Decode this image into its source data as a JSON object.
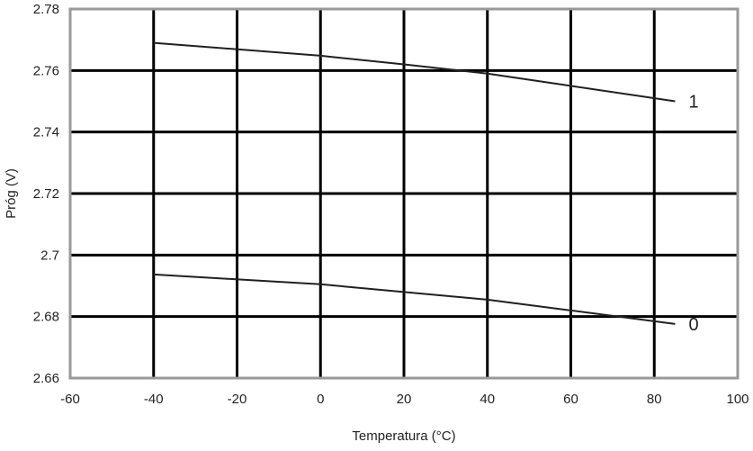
{
  "chart_data": {
    "type": "line",
    "title": "",
    "xlabel": "Temperatura (°C)",
    "ylabel": "Próg (V)",
    "xlim": [
      -60,
      100
    ],
    "ylim": [
      2.66,
      2.78
    ],
    "x_ticks": [
      -60,
      -40,
      -20,
      0,
      20,
      40,
      60,
      80,
      100
    ],
    "x_tick_labels": [
      "-60",
      "-40",
      "-20",
      "0",
      "20",
      "40",
      "60",
      "80",
      "100"
    ],
    "y_ticks": [
      2.66,
      2.68,
      2.7,
      2.72,
      2.74,
      2.76,
      2.78
    ],
    "y_tick_labels": [
      "2.66",
      "2.68",
      "2.7",
      "2.72",
      "2.74",
      "2.76",
      "2.78"
    ],
    "grid": true,
    "series": [
      {
        "name": "1",
        "x": [
          -40,
          0,
          20,
          40,
          60,
          85
        ],
        "y": [
          2.769,
          2.7648,
          2.762,
          2.759,
          2.755,
          2.75
        ]
      },
      {
        "name": "0",
        "x": [
          -40,
          0,
          20,
          40,
          60,
          85
        ],
        "y": [
          2.6937,
          2.6905,
          2.688,
          2.6855,
          2.682,
          2.6776
        ]
      }
    ],
    "colors": {
      "line": "#231f20",
      "grid": "#000000",
      "frame": "#999999"
    }
  }
}
